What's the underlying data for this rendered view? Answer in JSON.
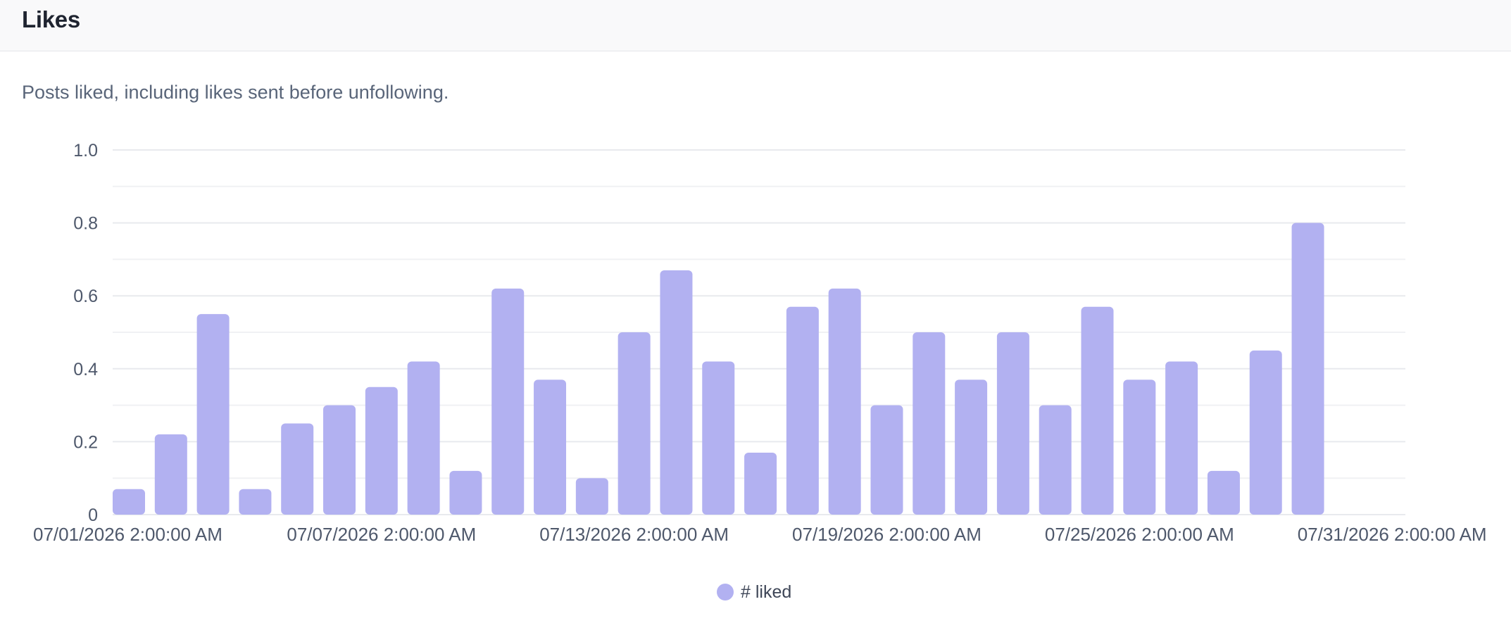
{
  "header": {
    "title": "Likes"
  },
  "subtitle": "Posts liked, including likes sent before unfollowing.",
  "chart_data": {
    "type": "bar",
    "ylim": [
      0,
      1
    ],
    "y_ticks": [
      0,
      0.2,
      0.4,
      0.6,
      0.8,
      1.0
    ],
    "y_tick_labels": [
      "0",
      "0.2",
      "0.4",
      "0.6",
      "0.8",
      "1.0"
    ],
    "grid": true,
    "x_tick_labels": [
      "07/01/2026 2:00:00 AM",
      "07/07/2026 2:00:00 AM",
      "07/13/2026 2:00:00 AM",
      "07/19/2026 2:00:00 AM",
      "07/25/2026 2:00:00 AM",
      "07/31/2026 2:00:00 AM"
    ],
    "x_tick_index": [
      0,
      6,
      12,
      18,
      24,
      30
    ],
    "categories": [
      "07/01/2026 2:00:00 AM",
      "07/02/2026 2:00:00 AM",
      "07/03/2026 2:00:00 AM",
      "07/04/2026 2:00:00 AM",
      "07/05/2026 2:00:00 AM",
      "07/06/2026 2:00:00 AM",
      "07/07/2026 2:00:00 AM",
      "07/08/2026 2:00:00 AM",
      "07/09/2026 2:00:00 AM",
      "07/10/2026 2:00:00 AM",
      "07/11/2026 2:00:00 AM",
      "07/12/2026 2:00:00 AM",
      "07/13/2026 2:00:00 AM",
      "07/14/2026 2:00:00 AM",
      "07/15/2026 2:00:00 AM",
      "07/16/2026 2:00:00 AM",
      "07/17/2026 2:00:00 AM",
      "07/18/2026 2:00:00 AM",
      "07/19/2026 2:00:00 AM",
      "07/20/2026 2:00:00 AM",
      "07/21/2026 2:00:00 AM",
      "07/22/2026 2:00:00 AM",
      "07/23/2026 2:00:00 AM",
      "07/24/2026 2:00:00 AM",
      "07/25/2026 2:00:00 AM",
      "07/26/2026 2:00:00 AM",
      "07/27/2026 2:00:00 AM",
      "07/28/2026 2:00:00 AM",
      "07/29/2026 2:00:00 AM",
      "07/30/2026 2:00:00 AM",
      "07/31/2026 2:00:00 AM"
    ],
    "series": [
      {
        "name": "# liked",
        "color": "#b2b1f1",
        "values": [
          0.07,
          0.22,
          0.55,
          0.07,
          0.25,
          0.3,
          0.35,
          0.42,
          0.12,
          0.62,
          0.37,
          0.1,
          0.5,
          0.67,
          0.42,
          0.17,
          0.57,
          0.62,
          0.3,
          0.5,
          0.37,
          0.5,
          0.3,
          0.57,
          0.37,
          0.42,
          0.12,
          0.45,
          0.8,
          0.0,
          0.0
        ]
      }
    ],
    "legend_position": "bottom-center"
  }
}
